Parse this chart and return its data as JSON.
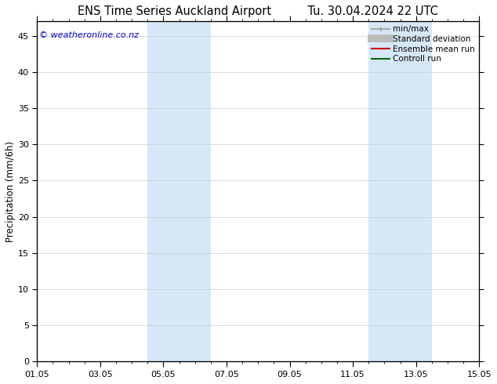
{
  "title_left": "ENS Time Series Auckland Airport",
  "title_right": "Tu. 30.04.2024 22 UTC",
  "ylabel": "Precipitation (mm/6h)",
  "ylim": [
    0,
    47
  ],
  "yticks": [
    0,
    5,
    10,
    15,
    20,
    25,
    30,
    35,
    40,
    45
  ],
  "xtick_labels": [
    "01.05",
    "03.05",
    "05.05",
    "07.05",
    "09.05",
    "11.05",
    "13.05",
    "15.05"
  ],
  "xtick_positions": [
    0,
    2,
    4,
    6,
    8,
    10,
    12,
    14
  ],
  "shaded_bands": [
    {
      "x_start": 3.5,
      "x_end": 5.5
    },
    {
      "x_start": 10.5,
      "x_end": 12.5
    }
  ],
  "shaded_color": "#d6e8f7",
  "copyright_text": "© weatheronline.co.nz",
  "copyright_color": "#0000cd",
  "legend_items": [
    {
      "label": "min/max",
      "color": "#aaaaaa",
      "lw": 1.5
    },
    {
      "label": "Standard deviation",
      "color": "#bbbbbb",
      "lw": 6
    },
    {
      "label": "Ensemble mean run",
      "color": "#cc0000",
      "lw": 1.5
    },
    {
      "label": "Controll run",
      "color": "#006600",
      "lw": 1.5
    }
  ],
  "bg_color": "#ffffff",
  "grid_color": "#cccccc",
  "title_fontsize": 10.5,
  "axis_label_fontsize": 8.5,
  "tick_fontsize": 8,
  "legend_fontsize": 7.5,
  "minor_tick_interval": 0.5
}
